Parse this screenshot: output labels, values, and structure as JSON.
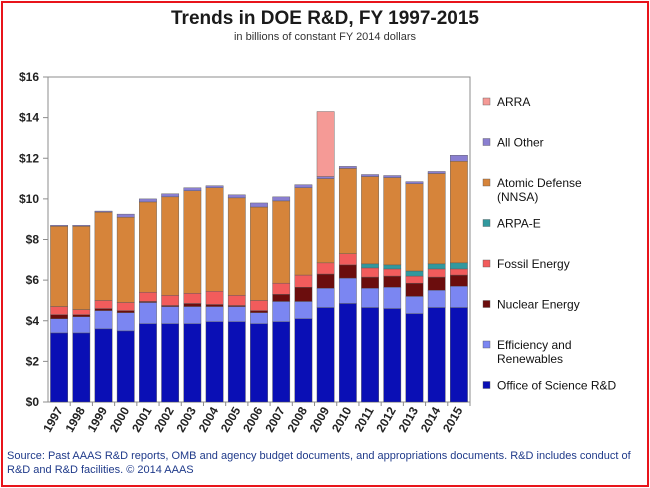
{
  "chart_data": {
    "type": "bar",
    "stacked": true,
    "title": "Trends in DOE R&D, FY 1997-2015",
    "subtitle": "in billions of constant FY 2014 dollars",
    "ylim": [
      0,
      16
    ],
    "yticks": [
      0,
      2,
      4,
      6,
      8,
      10,
      12,
      14,
      16
    ],
    "ytick_labels": [
      "$0",
      "$2",
      "$4",
      "$6",
      "$8",
      "$10",
      "$12",
      "$14",
      "$16"
    ],
    "categories": [
      "1997",
      "1998",
      "1999",
      "2000",
      "2001",
      "2002",
      "2003",
      "2004",
      "2005",
      "2006",
      "2007",
      "2008",
      "2009",
      "2010",
      "2011",
      "2012",
      "2013",
      "2014",
      "2015"
    ],
    "series": [
      {
        "name": "Office of Science R&D",
        "color": "#0a0fb5",
        "values": [
          3.4,
          3.4,
          3.6,
          3.5,
          3.85,
          3.85,
          3.85,
          3.95,
          3.95,
          3.85,
          3.95,
          4.1,
          4.65,
          4.85,
          4.65,
          4.6,
          4.35,
          4.65,
          4.65
        ]
      },
      {
        "name": "Efficiency and Renewables",
        "color": "#7b86f2",
        "values": [
          0.7,
          0.8,
          0.9,
          0.9,
          1.05,
          0.85,
          0.85,
          0.75,
          0.75,
          0.55,
          1.0,
          0.85,
          0.95,
          1.25,
          0.95,
          1.05,
          0.85,
          0.85,
          1.05
        ]
      },
      {
        "name": "Nuclear Energy",
        "color": "#6b0d0d",
        "values": [
          0.2,
          0.1,
          0.1,
          0.1,
          0.05,
          0.05,
          0.15,
          0.1,
          0.05,
          0.1,
          0.35,
          0.7,
          0.7,
          0.65,
          0.55,
          0.55,
          0.65,
          0.65,
          0.55
        ]
      },
      {
        "name": "Fossil Energy",
        "color": "#f25c5c",
        "values": [
          0.4,
          0.25,
          0.4,
          0.4,
          0.45,
          0.5,
          0.5,
          0.65,
          0.5,
          0.5,
          0.55,
          0.6,
          0.55,
          0.55,
          0.45,
          0.35,
          0.35,
          0.4,
          0.3
        ]
      },
      {
        "name": "ARPA-E",
        "color": "#31999e",
        "values": [
          0,
          0,
          0,
          0,
          0,
          0,
          0,
          0,
          0,
          0,
          0,
          0,
          0,
          0,
          0.2,
          0.2,
          0.25,
          0.25,
          0.3
        ]
      },
      {
        "name": "Atomic Defense (NNSA)",
        "color": "#d6843a",
        "values": [
          3.95,
          4.1,
          4.35,
          4.2,
          4.45,
          4.85,
          5.05,
          5.1,
          4.8,
          4.6,
          4.05,
          4.3,
          4.15,
          4.2,
          4.3,
          4.3,
          4.3,
          4.45,
          5.0
        ]
      },
      {
        "name": "All Other",
        "color": "#8a7fd1",
        "values": [
          0.05,
          0.05,
          0.05,
          0.15,
          0.15,
          0.15,
          0.15,
          0.1,
          0.15,
          0.2,
          0.2,
          0.15,
          0.1,
          0.1,
          0.1,
          0.1,
          0.1,
          0.1,
          0.3
        ]
      },
      {
        "name": "ARRA",
        "color": "#f59a96",
        "values": [
          0,
          0,
          0,
          0,
          0,
          0,
          0,
          0,
          0,
          0,
          0,
          0,
          3.2,
          0,
          0,
          0,
          0,
          0,
          0
        ]
      }
    ],
    "legend": {
      "placement": "right",
      "order": [
        "ARRA",
        "All Other",
        "Atomic Defense (NNSA)",
        "ARPA-E",
        "Fossil Energy",
        "Nuclear Energy",
        "Efficiency and Renewables",
        "Office of Science R&D"
      ],
      "labels": {
        "ARRA": [
          "ARRA"
        ],
        "All Other": [
          "All Other"
        ],
        "Atomic Defense (NNSA)": [
          "Atomic Defense",
          "(NNSA)"
        ],
        "ARPA-E": [
          "ARPA-E"
        ],
        "Fossil Energy": [
          "Fossil Energy"
        ],
        "Nuclear Energy": [
          "Nuclear Energy"
        ],
        "Efficiency and Renewables": [
          "Efficiency and",
          "Renewables"
        ],
        "Office of Science R&D": [
          "Office of Science R&D"
        ]
      }
    }
  },
  "source": "Source: Past AAAS R&D reports, OMB and agency budget documents, and appropriations documents. R&D includes conduct of R&D and R&D facilities. © 2014 AAAS"
}
